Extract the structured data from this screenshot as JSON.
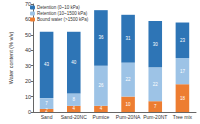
{
  "chart_data": {
    "type": "bar",
    "stacked": true,
    "data_labels": true,
    "grid": false,
    "legend": "upper left",
    "y_label": "Water content (% v/v)",
    "categories": [
      "Sand",
      "Sand-20NC",
      "Pumice",
      "Pum-20NA",
      "Pum-20NT",
      "Tree mix"
    ],
    "series": [
      {
        "name": "Bound water (>1500 kPa)",
        "color": "#ed7d31",
        "values": [
          2,
          4,
          4,
          10,
          7,
          18
        ]
      },
      {
        "name": "Retention (10~1500 kPa)",
        "color": "#9dc3e6",
        "values": [
          7,
          8,
          26,
          22,
          22,
          17
        ]
      },
      {
        "name": "Detention (0~10 kPa)",
        "color": "#2e75b6",
        "values": [
          43,
          40,
          36,
          31,
          30,
          23
        ]
      }
    ],
    "ylim": [
      0,
      70
    ],
    "yticks": [
      0,
      10,
      20,
      30,
      40,
      50,
      60,
      70
    ]
  }
}
